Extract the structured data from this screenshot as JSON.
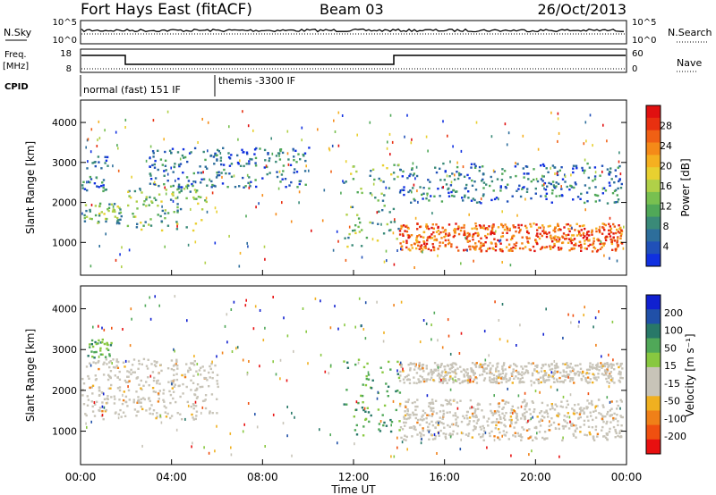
{
  "header": {
    "title": "Fort Hays East (fitACF)",
    "beam": "Beam 03",
    "date": "26/Oct/2013"
  },
  "top_panels": {
    "nsky_label": "N.Sky",
    "nsky_ticks": [
      "10^5",
      "10^0"
    ],
    "nsearch_label": "N.Search",
    "nsearch_ticks": [
      "10^5",
      "10^0"
    ],
    "freq_label_1": "Freq.",
    "freq_label_2": "[MHz]",
    "freq_ticks": [
      "18",
      "8"
    ],
    "nave_label": "Nave",
    "nave_ticks": [
      "60",
      "0"
    ],
    "cpid_label": "CPID",
    "cpid_1": "normal (fast) 151 IF",
    "cpid_2": "themis -3300 IF"
  },
  "chart_data": [
    {
      "type": "heatmap",
      "name": "power",
      "ylabel": "Slant Range [km]",
      "yticks": [
        "1000",
        "2000",
        "3000",
        "4000"
      ],
      "ylim": [
        180,
        4560
      ],
      "colorbar_label": "Power [dB]",
      "colorbar_ticks": [
        "4",
        "8",
        "12",
        "16",
        "20",
        "24",
        "28"
      ],
      "colorscale": [
        "#1030e0",
        "#2050b8",
        "#2d6e9b",
        "#3a8a78",
        "#50a858",
        "#78c050",
        "#b0d048",
        "#e8d030",
        "#f5b020",
        "#f58a18",
        "#f06014",
        "#e83010",
        "#e01010"
      ],
      "bands": [
        {
          "from_h": 0.0,
          "to_h": 1.8,
          "range_km": [
            1500,
            2000
          ],
          "level": "mid"
        },
        {
          "from_h": 0.0,
          "to_h": 1.2,
          "range_km": [
            2300,
            3200
          ],
          "level": "low"
        },
        {
          "from_h": 2.0,
          "to_h": 5.5,
          "range_km": [
            1300,
            2500
          ],
          "level": "mid"
        },
        {
          "from_h": 3.0,
          "to_h": 10.0,
          "range_km": [
            2400,
            3400
          ],
          "level": "low"
        },
        {
          "from_h": 11.5,
          "to_h": 14.0,
          "range_km": [
            900,
            3000
          ],
          "level": "mid"
        },
        {
          "from_h": 14.0,
          "to_h": 23.8,
          "range_km": [
            800,
            1500
          ],
          "level": "high"
        },
        {
          "from_h": 14.0,
          "to_h": 23.8,
          "range_km": [
            2000,
            3000
          ],
          "level": "low"
        }
      ]
    },
    {
      "type": "heatmap",
      "name": "velocity",
      "ylabel": "Slant Range [km]",
      "yticks": [
        "1000",
        "2000",
        "3000",
        "4000"
      ],
      "ylim": [
        180,
        4560
      ],
      "colorbar_label": "Velocity [m s⁻¹]",
      "colorbar_ticks": [
        "200",
        "100",
        "50",
        "15",
        "-15",
        "-50",
        "-100",
        "-200"
      ],
      "colorscale": [
        "#e81010",
        "#f05010",
        "#f08018",
        "#f0b020",
        "#c8c4b8",
        "#c8c4b8",
        "#88c840",
        "#50a858",
        "#287868",
        "#2050a8",
        "#1020d0"
      ],
      "bands": [
        {
          "from_h": 0.0,
          "to_h": 6.0,
          "range_km": [
            1300,
            2800
          ],
          "level": "ground"
        },
        {
          "from_h": 0.2,
          "to_h": 1.4,
          "range_km": [
            2800,
            3300
          ],
          "level": "toward"
        },
        {
          "from_h": 11.5,
          "to_h": 14.0,
          "range_km": [
            900,
            2800
          ],
          "level": "toward"
        },
        {
          "from_h": 14.0,
          "to_h": 23.8,
          "range_km": [
            800,
            1800
          ],
          "level": "ground"
        },
        {
          "from_h": 14.0,
          "to_h": 23.8,
          "range_km": [
            2200,
            2700
          ],
          "level": "ground"
        }
      ],
      "xlabel": "Time UT",
      "xticks": [
        "00:00",
        "04:00",
        "08:00",
        "12:00",
        "16:00",
        "20:00",
        "00:00"
      ],
      "xlim_hours": [
        0,
        24
      ]
    }
  ]
}
